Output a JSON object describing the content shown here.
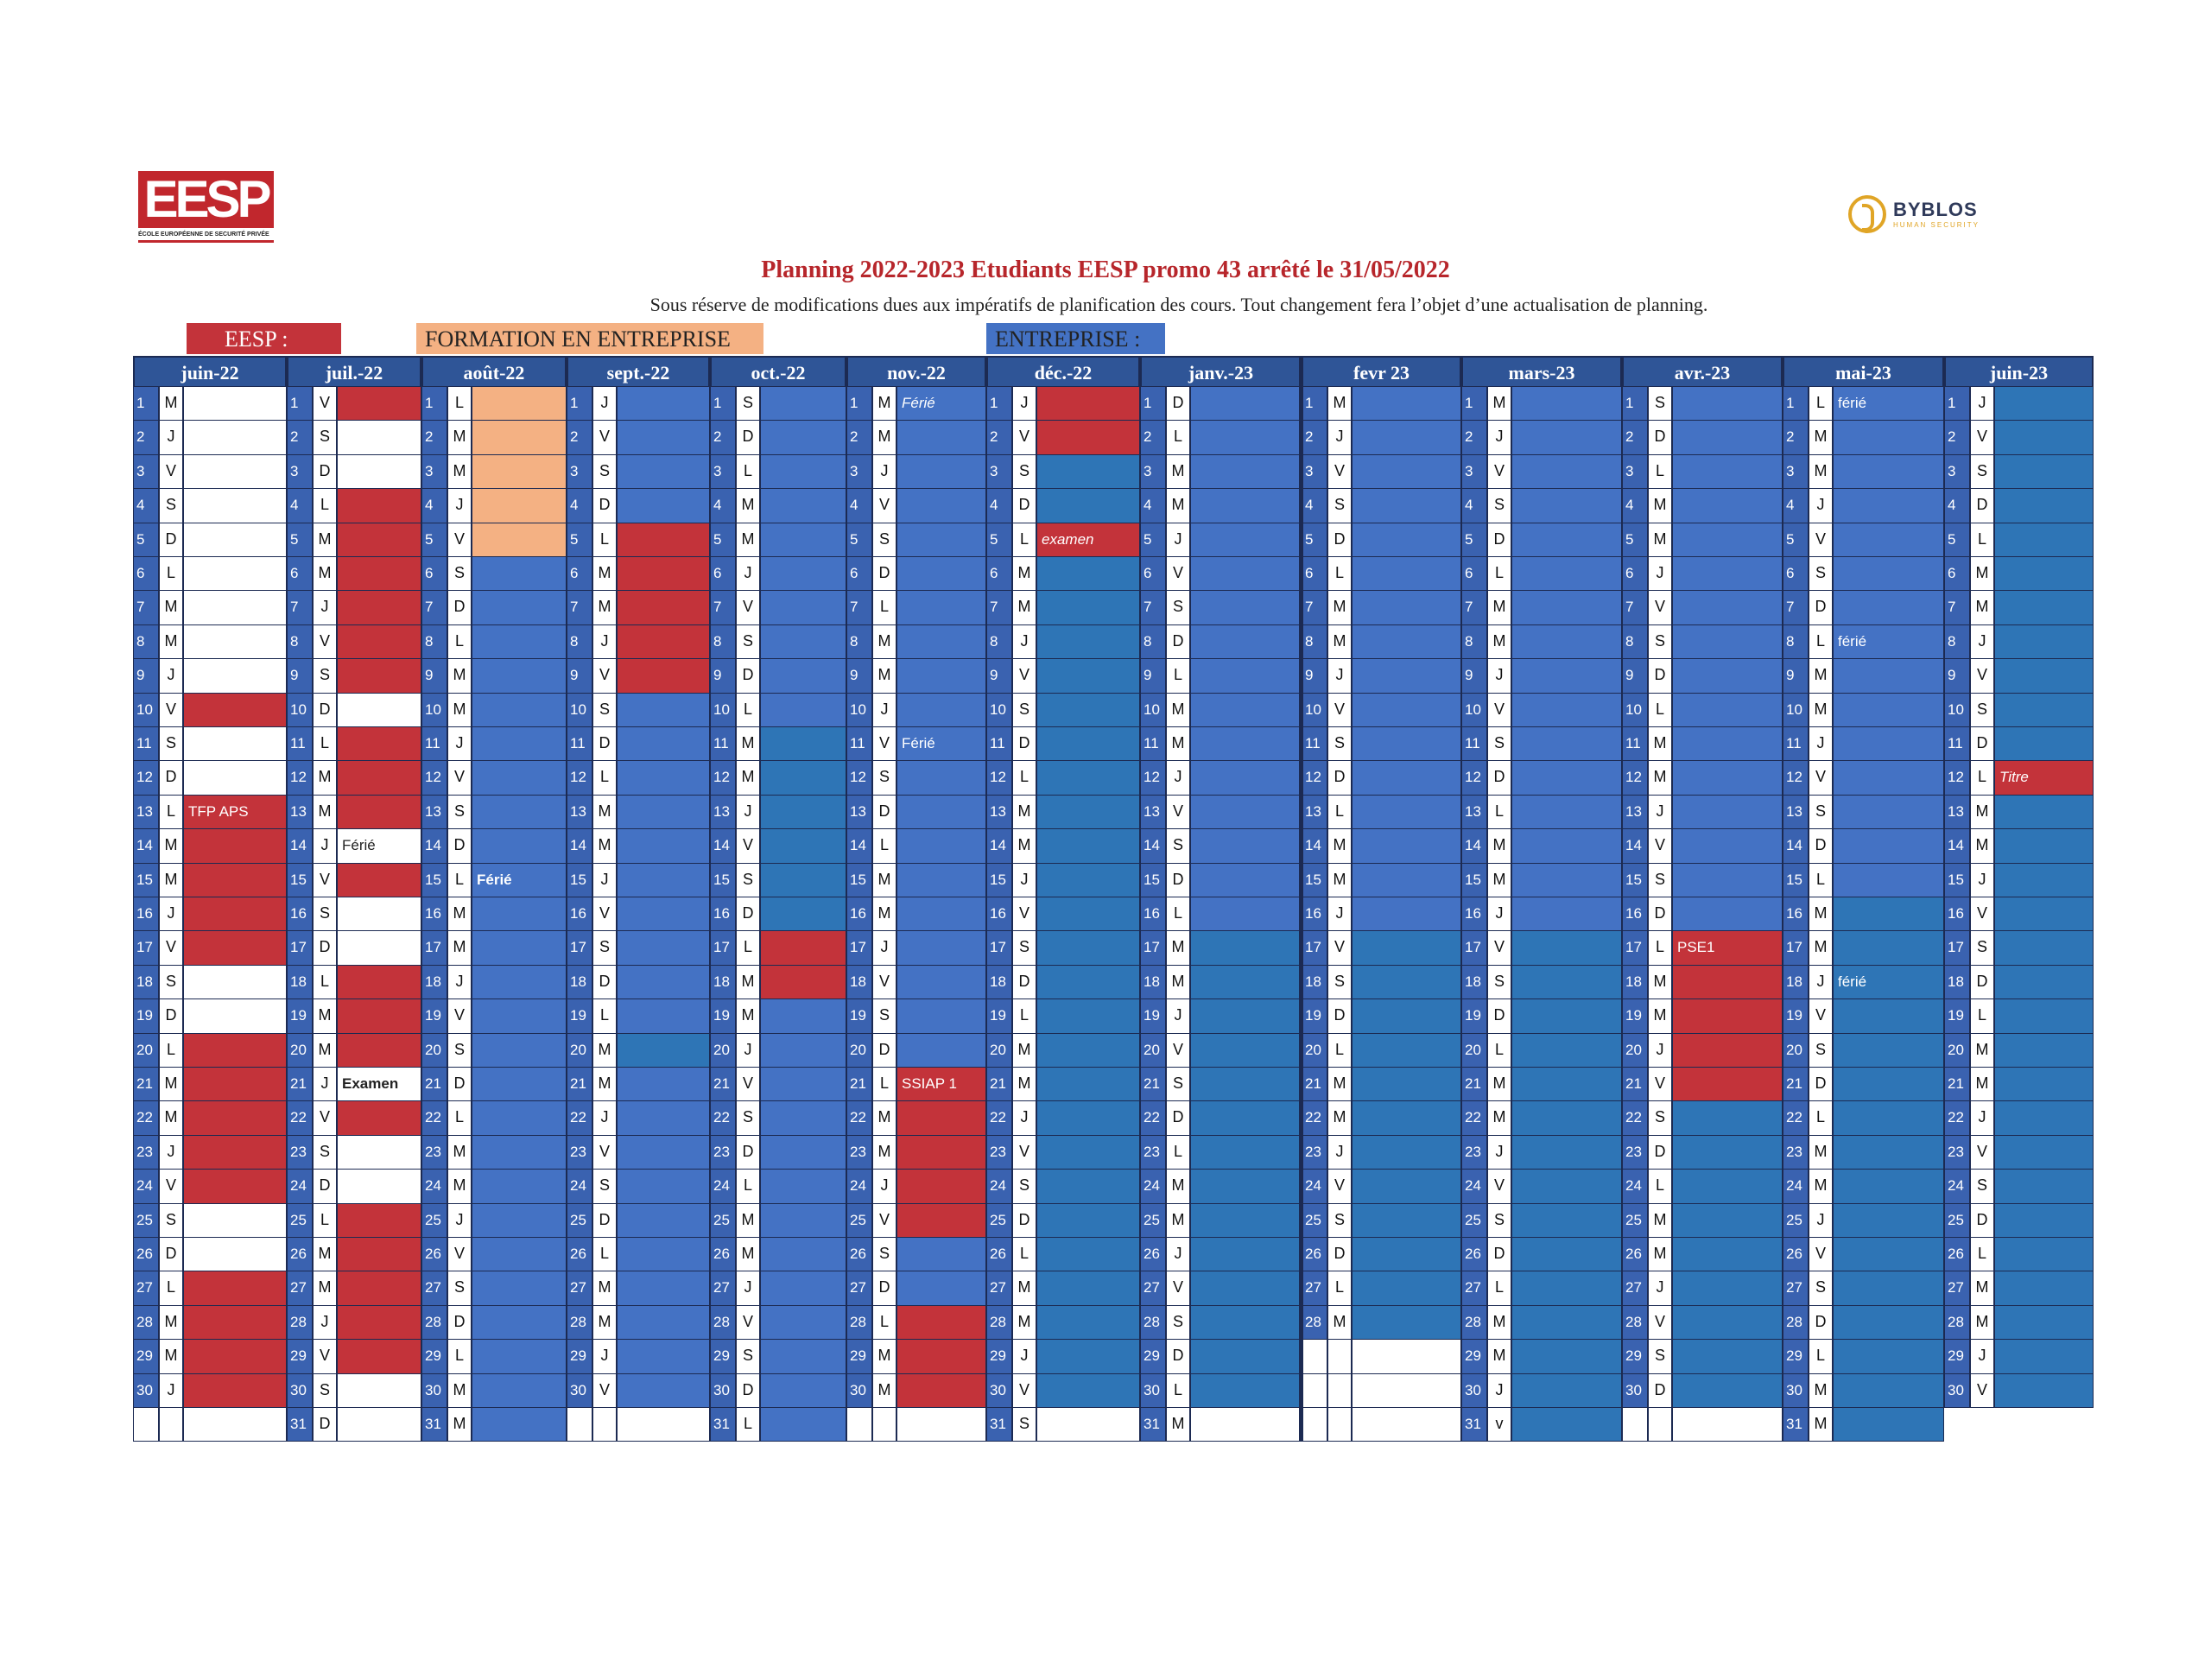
{
  "logos": {
    "eesp_text": "EESP",
    "eesp_subtitle": "ÉCOLE EUROPÉENNE DE SECURITÉ PRIVÉE",
    "byblos_name": "BYBLOS",
    "byblos_tagline": "HUMAN SECURITY"
  },
  "title": "Planning 2022-2023 Etudiants EESP promo 43 arrêté le 31/05/2022",
  "subtitle": "Sous réserve de modifications dues aux impératifs de planification des cours. Tout changement fera l’objet d’une actualisation de planning.",
  "legend": [
    {
      "label": "EESP :",
      "color": "#c3333a"
    },
    {
      "label": "FORMATION EN ENTREPRISE",
      "color": "#f4b183"
    },
    {
      "label": "ENTREPRISE :",
      "color": "#4472c4"
    }
  ],
  "colors": {
    "W": "#ffffff",
    "R": "#c3333a",
    "O": "#f4b183",
    "B": "#4472c4",
    "D": "#2e75b6"
  },
  "months": [
    {
      "name": "juin-22",
      "days": [
        "M",
        "J",
        "V",
        "S",
        "D",
        "L",
        "M",
        "M",
        "J",
        "V",
        "S",
        "D",
        "L",
        "M",
        "M",
        "J",
        "V",
        "S",
        "D",
        "L",
        "M",
        "M",
        "J",
        "V",
        "S",
        "D",
        "L",
        "M",
        "M",
        "J"
      ],
      "colors": "WWWWWWWWWRWWRRRRRWWRRRRRWWRRRR",
      "notes": {
        "13": "TFP APS"
      }
    },
    {
      "name": "juil.-22",
      "days": [
        "V",
        "S",
        "D",
        "L",
        "M",
        "M",
        "J",
        "V",
        "S",
        "D",
        "L",
        "M",
        "M",
        "J",
        "V",
        "S",
        "D",
        "L",
        "M",
        "M",
        "J",
        "V",
        "S",
        "D",
        "L",
        "M",
        "M",
        "J",
        "V",
        "S",
        "D"
      ],
      "colors": "RWWRRRRRRWRRRWRWWRRRWRWWRRRRRWW",
      "notes": {
        "14": "Férié",
        "21": "Examen"
      },
      "bold": [
        "21"
      ]
    },
    {
      "name": "août-22",
      "days": [
        "L",
        "M",
        "M",
        "J",
        "V",
        "S",
        "D",
        "L",
        "M",
        "M",
        "J",
        "V",
        "S",
        "D",
        "L",
        "M",
        "M",
        "J",
        "V",
        "S",
        "D",
        "L",
        "M",
        "M",
        "J",
        "V",
        "S",
        "D",
        "L",
        "M",
        "M"
      ],
      "colors": "OOOOOBBBBBBBBBBBBBBBBBBBBBBBBBB",
      "notes": {
        "15": "Férié"
      },
      "bold": [
        "15"
      ]
    },
    {
      "name": "sept.-22",
      "days": [
        "J",
        "V",
        "S",
        "D",
        "L",
        "M",
        "M",
        "J",
        "V",
        "S",
        "D",
        "L",
        "M",
        "M",
        "J",
        "V",
        "S",
        "D",
        "L",
        "M",
        "M",
        "J",
        "V",
        "S",
        "D",
        "L",
        "M",
        "M",
        "J",
        "V"
      ],
      "colors": "BBBBRRRRRBBBBBBBBBBDBBBBBBBBBB",
      "notes": {}
    },
    {
      "name": "oct.-22",
      "days": [
        "S",
        "D",
        "L",
        "M",
        "M",
        "J",
        "V",
        "S",
        "D",
        "L",
        "M",
        "M",
        "J",
        "V",
        "S",
        "D",
        "L",
        "M",
        "M",
        "J",
        "V",
        "S",
        "D",
        "L",
        "M",
        "M",
        "J",
        "V",
        "S",
        "D",
        "L"
      ],
      "colors": "BBBBBBBBBBDDDDDDRRBBBBBBBBBBBBB",
      "notes": {}
    },
    {
      "name": "nov.-22",
      "days": [
        "M",
        "M",
        "J",
        "V",
        "S",
        "D",
        "L",
        "M",
        "M",
        "J",
        "V",
        "S",
        "D",
        "L",
        "M",
        "M",
        "J",
        "V",
        "S",
        "D",
        "L",
        "M",
        "M",
        "J",
        "V",
        "S",
        "D",
        "L",
        "M",
        "M"
      ],
      "colors": "BBBBBBBBBBBBBBBBBBBBRRRRRBBRRR",
      "notes": {
        "1": "Férié",
        "11": "Férié",
        "21": "SSIAP 1"
      },
      "italic": [
        "1"
      ]
    },
    {
      "name": "déc.-22",
      "days": [
        "J",
        "V",
        "S",
        "D",
        "L",
        "M",
        "M",
        "J",
        "V",
        "S",
        "D",
        "L",
        "M",
        "M",
        "J",
        "V",
        "S",
        "D",
        "L",
        "M",
        "M",
        "J",
        "V",
        "S",
        "D",
        "L",
        "M",
        "M",
        "J",
        "V",
        "S"
      ],
      "colors": "RRDDRDDDDDDDDDDDDDDDDDDDDDDDDDW",
      "notes": {
        "5": "examen"
      },
      "italic": [
        "5"
      ]
    },
    {
      "name": "janv.-23",
      "days": [
        "D",
        "L",
        "M",
        "M",
        "J",
        "V",
        "S",
        "D",
        "L",
        "M",
        "M",
        "J",
        "V",
        "S",
        "D",
        "L",
        "M",
        "M",
        "J",
        "V",
        "S",
        "D",
        "L",
        "M",
        "M",
        "J",
        "V",
        "S",
        "D",
        "L",
        "M"
      ],
      "colors": "BBBBBBBBBBBBBBBBDDDDDDDDDDDDDDW",
      "notes": {}
    },
    {
      "name": "fevr 23",
      "days": [
        "M",
        "J",
        "V",
        "S",
        "D",
        "L",
        "M",
        "M",
        "J",
        "V",
        "S",
        "D",
        "L",
        "M",
        "M",
        "J",
        "V",
        "S",
        "D",
        "L",
        "M",
        "M",
        "J",
        "V",
        "S",
        "D",
        "L",
        "M"
      ],
      "colors": "BBBBBBBBBBBBBBBBDDDDDDDDDDDD",
      "notes": {}
    },
    {
      "name": "mars-23",
      "days": [
        "M",
        "J",
        "V",
        "S",
        "D",
        "L",
        "M",
        "M",
        "J",
        "V",
        "S",
        "D",
        "L",
        "M",
        "M",
        "J",
        "V",
        "S",
        "D",
        "L",
        "M",
        "M",
        "J",
        "V",
        "S",
        "D",
        "L",
        "M",
        "M",
        "J",
        "v"
      ],
      "colors": "BBBBBBBBBBBBBBBBDDDDDDDDDDDDDDD",
      "notes": {}
    },
    {
      "name": "avr.-23",
      "days": [
        "S",
        "D",
        "L",
        "M",
        "M",
        "J",
        "V",
        "S",
        "D",
        "L",
        "M",
        "M",
        "J",
        "V",
        "S",
        "D",
        "L",
        "M",
        "M",
        "J",
        "V",
        "S",
        "D",
        "L",
        "M",
        "M",
        "J",
        "V",
        "S",
        "D"
      ],
      "colors": "BBBBBBBBBBBBBBBBRRRRRDDDDDDDDD",
      "notes": {
        "17": "PSE1"
      }
    },
    {
      "name": "mai-23",
      "days": [
        "L",
        "M",
        "M",
        "J",
        "V",
        "S",
        "D",
        "L",
        "M",
        "M",
        "J",
        "V",
        "S",
        "D",
        "L",
        "M",
        "M",
        "J",
        "V",
        "S",
        "D",
        "L",
        "M",
        "M",
        "J",
        "V",
        "S",
        "D",
        "L",
        "M",
        "M"
      ],
      "colors": "BBBBBBBBBBBBBBBDDDDDDDDDDDDDDDD",
      "notes": {
        "1": "férié",
        "8": "férié",
        "18": "férié"
      }
    },
    {
      "name": "juin-23",
      "days": [
        "J",
        "V",
        "S",
        "D",
        "L",
        "M",
        "M",
        "J",
        "V",
        "S",
        "D",
        "L",
        "M",
        "M",
        "J",
        "V",
        "S",
        "D",
        "L",
        "M",
        "M",
        "J",
        "V",
        "S",
        "D",
        "L",
        "M",
        "M",
        "J",
        "V"
      ],
      "colors": "DDDDDDDDDDDRDDDDDDDDDDDDDDDDDD",
      "notes": {
        "12": "Titre"
      },
      "italic": [
        "12"
      ]
    }
  ]
}
